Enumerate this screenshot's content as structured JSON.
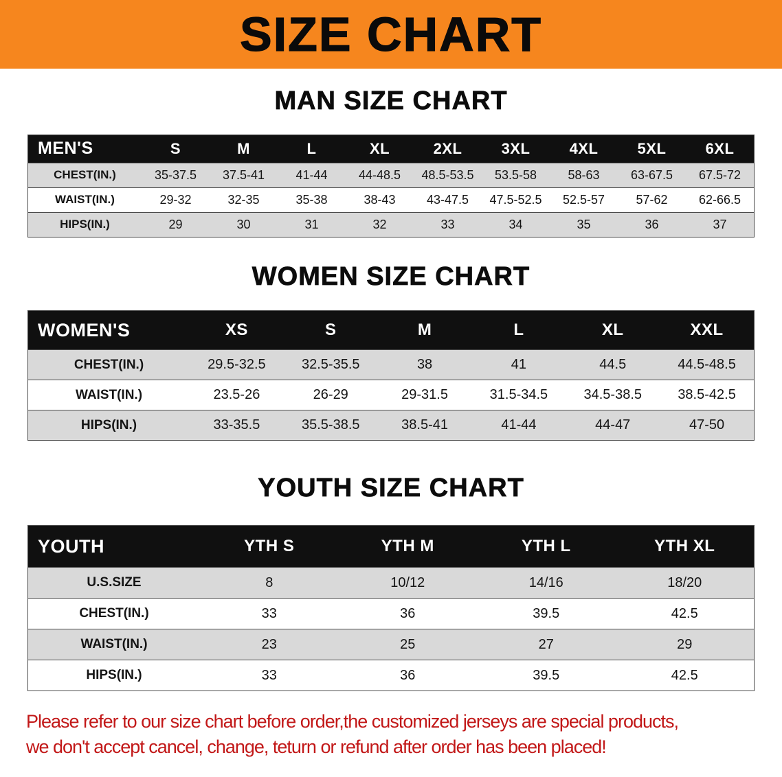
{
  "banner": {
    "title": "SIZE CHART"
  },
  "section_headings": [
    "MAN SIZE CHART",
    "WOMEN SIZE CHART",
    "YOUTH SIZE CHART"
  ],
  "chart_data": [
    {
      "type": "table",
      "title": "MAN SIZE CHART",
      "columns": [
        "MEN'S",
        "S",
        "M",
        "L",
        "XL",
        "2XL",
        "3XL",
        "4XL",
        "5XL",
        "6XL"
      ],
      "rows": [
        [
          "CHEST(IN.)",
          "35-37.5",
          "37.5-41",
          "41-44",
          "44-48.5",
          "48.5-53.5",
          "53.5-58",
          "58-63",
          "63-67.5",
          "67.5-72"
        ],
        [
          "WAIST(IN.)",
          "29-32",
          "32-35",
          "35-38",
          "38-43",
          "43-47.5",
          "47.5-52.5",
          "52.5-57",
          "57-62",
          "62-66.5"
        ],
        [
          "HIPS(IN.)",
          "29",
          "30",
          "31",
          "32",
          "33",
          "34",
          "35",
          "36",
          "37"
        ]
      ]
    },
    {
      "type": "table",
      "title": "WOMEN SIZE CHART",
      "columns": [
        "WOMEN'S",
        "XS",
        "S",
        "M",
        "L",
        "XL",
        "XXL"
      ],
      "rows": [
        [
          "CHEST(IN.)",
          "29.5-32.5",
          "32.5-35.5",
          "38",
          "41",
          "44.5",
          "44.5-48.5"
        ],
        [
          "WAIST(IN.)",
          "23.5-26",
          "26-29",
          "29-31.5",
          "31.5-34.5",
          "34.5-38.5",
          "38.5-42.5"
        ],
        [
          "HIPS(IN.)",
          "33-35.5",
          "35.5-38.5",
          "38.5-41",
          "41-44",
          "44-47",
          "47-50"
        ]
      ]
    },
    {
      "type": "table",
      "title": "YOUTH SIZE CHART",
      "columns": [
        "YOUTH",
        "YTH S",
        "YTH M",
        "YTH L",
        "YTH XL"
      ],
      "rows": [
        [
          "U.S.SIZE",
          "8",
          "10/12",
          "14/16",
          "18/20"
        ],
        [
          "CHEST(IN.)",
          "33",
          "36",
          "39.5",
          "42.5"
        ],
        [
          "WAIST(IN.)",
          "23",
          "25",
          "27",
          "29"
        ],
        [
          "HIPS(IN.)",
          "33",
          "36",
          "39.5",
          "42.5"
        ]
      ]
    }
  ],
  "footer_note": {
    "line1": "Please refer to our size chart before order,the customized jerseys are special products,",
    "line2": "we don't accept cancel, change, teturn or refund after order has been placed!"
  },
  "colors": {
    "banner_bg": "#f6861e",
    "table_header_bg": "#101010",
    "row_alt_bg": "#d9d9d9",
    "note_text": "#c21818"
  }
}
